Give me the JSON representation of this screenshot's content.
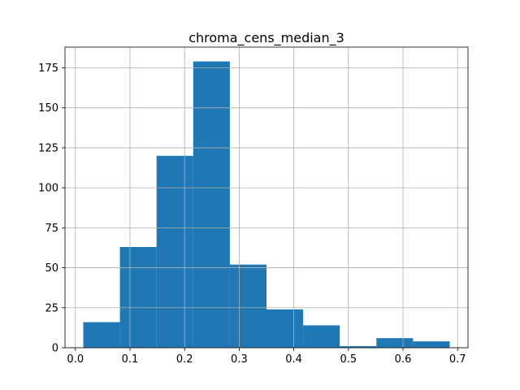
{
  "chart_data": {
    "type": "histogram",
    "title": "chroma_cens_median_3",
    "xlabel": "",
    "ylabel": "",
    "bar_color": "#1f77b4",
    "grid": true,
    "bins": [
      {
        "x0": 0.0145,
        "x1": 0.0816,
        "count": 16
      },
      {
        "x0": 0.0816,
        "x1": 0.1487,
        "count": 63
      },
      {
        "x0": 0.1487,
        "x1": 0.2158,
        "count": 120
      },
      {
        "x0": 0.2158,
        "x1": 0.2829,
        "count": 179
      },
      {
        "x0": 0.2829,
        "x1": 0.35,
        "count": 52
      },
      {
        "x0": 0.35,
        "x1": 0.4171,
        "count": 24
      },
      {
        "x0": 0.4171,
        "x1": 0.4842,
        "count": 14
      },
      {
        "x0": 0.4842,
        "x1": 0.5513,
        "count": 1
      },
      {
        "x0": 0.5513,
        "x1": 0.6184,
        "count": 6
      },
      {
        "x0": 0.6184,
        "x1": 0.6855,
        "count": 4
      }
    ],
    "xlim": [
      -0.019,
      0.719
    ],
    "ylim": [
      0,
      187.95
    ],
    "x_ticks": [
      0.0,
      0.1,
      0.2,
      0.3,
      0.4,
      0.5,
      0.6,
      0.7
    ],
    "x_tick_labels": [
      "0.0",
      "0.1",
      "0.2",
      "0.3",
      "0.4",
      "0.5",
      "0.6",
      "0.7"
    ],
    "y_ticks": [
      0,
      25,
      50,
      75,
      100,
      125,
      150,
      175
    ],
    "y_tick_labels": [
      "0",
      "25",
      "50",
      "75",
      "100",
      "125",
      "150",
      "175"
    ]
  }
}
